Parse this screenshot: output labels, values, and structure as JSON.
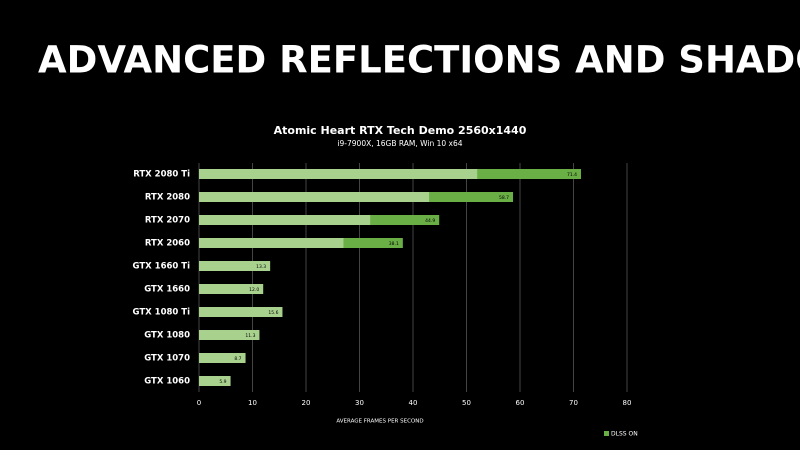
{
  "slide": {
    "title": "ADVANCED REFLECTIONS AND SHADOWS"
  },
  "chart_data": {
    "type": "bar",
    "orientation": "horizontal",
    "overlap": true,
    "title": "Atomic Heart RTX Tech Demo 2560x1440",
    "subtitle": "i9-7900X, 16GB RAM, Win 10 x64",
    "x_label": "AVERAGE FRAMES PER SECOND",
    "categories": [
      "RTX 2080 Ti",
      "RTX 2080",
      "RTX 2070",
      "RTX 2060",
      "GTX 1660 Ti",
      "GTX 1660",
      "GTX 1080 Ti",
      "GTX 1080",
      "GTX 1070",
      "GTX 1060"
    ],
    "series": [
      {
        "name": "DLSS ON",
        "color": "#6aaf45",
        "values": [
          71.4,
          58.7,
          44.9,
          38.1,
          null,
          null,
          null,
          null,
          null,
          null
        ],
        "value_labels": [
          "71.4",
          "58.7",
          "44.9",
          "38.1",
          null,
          null,
          null,
          null,
          null,
          null
        ]
      },
      {
        "color": "#a9d18e",
        "values": [
          52,
          43,
          32,
          27,
          13.3,
          12.0,
          15.6,
          11.3,
          8.7,
          5.9
        ],
        "value_labels": [
          null,
          null,
          null,
          null,
          "13.3",
          "12.0",
          "15.6",
          "11.3",
          "8.7",
          "5.9"
        ]
      }
    ],
    "xlim": [
      0,
      80
    ],
    "xticks": [
      0,
      10,
      20,
      30,
      40,
      50,
      60,
      70,
      80
    ],
    "grid": true,
    "legend": "bottom-right"
  }
}
